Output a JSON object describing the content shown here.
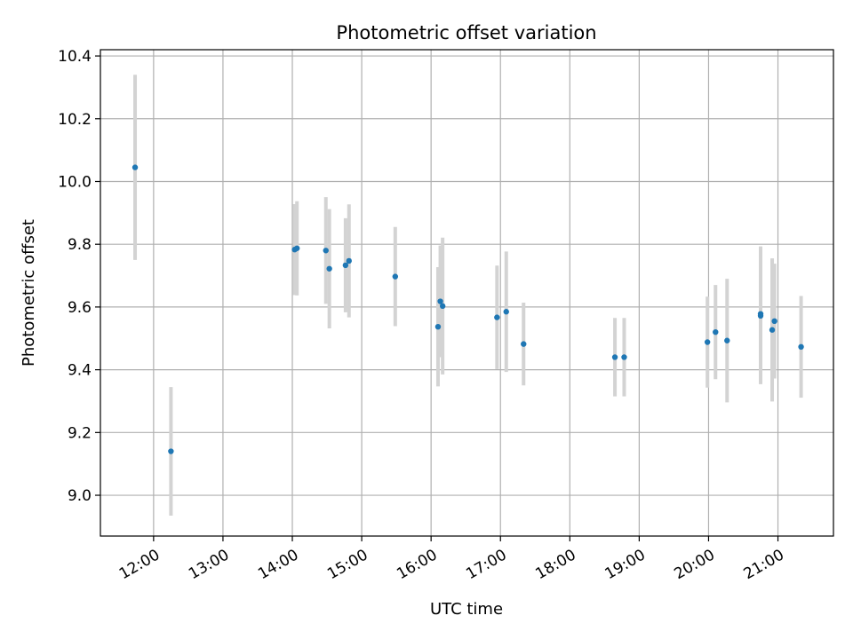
{
  "chart_data": {
    "type": "scatter",
    "title": "Photometric offset variation",
    "xlabel": "UTC time",
    "ylabel": "Photometric offset",
    "grid": true,
    "colors": {
      "point": "#1f77b4",
      "errorbar": "#d3d3d3",
      "grid": "#b0b0b0"
    },
    "xlim": [
      "11:14",
      "21:48"
    ],
    "ylim": [
      8.87,
      10.42
    ],
    "x_ticks": [
      "12:00",
      "13:00",
      "14:00",
      "15:00",
      "16:00",
      "17:00",
      "18:00",
      "19:00",
      "20:00",
      "21:00"
    ],
    "y_ticks": [
      "9.0",
      "9.2",
      "9.4",
      "9.6",
      "9.8",
      "10.0",
      "10.2",
      "10.4"
    ],
    "points": [
      {
        "x": "11:44",
        "y": 10.045,
        "yerr": 0.295
      },
      {
        "x": "12:15",
        "y": 9.14,
        "yerr": 0.205
      },
      {
        "x": "14:02",
        "y": 9.783,
        "yerr": 0.145
      },
      {
        "x": "14:04",
        "y": 9.787,
        "yerr": 0.15
      },
      {
        "x": "14:29",
        "y": 9.78,
        "yerr": 0.17
      },
      {
        "x": "14:32",
        "y": 9.722,
        "yerr": 0.19
      },
      {
        "x": "14:46",
        "y": 9.733,
        "yerr": 0.15
      },
      {
        "x": "14:49",
        "y": 9.747,
        "yerr": 0.18
      },
      {
        "x": "15:29",
        "y": 9.697,
        "yerr": 0.158
      },
      {
        "x": "16:06",
        "y": 9.537,
        "yerr": 0.19
      },
      {
        "x": "16:08",
        "y": 9.618,
        "yerr": 0.178
      },
      {
        "x": "16:10",
        "y": 9.603,
        "yerr": 0.218
      },
      {
        "x": "16:57",
        "y": 9.567,
        "yerr": 0.165
      },
      {
        "x": "17:05",
        "y": 9.585,
        "yerr": 0.192
      },
      {
        "x": "17:20",
        "y": 9.482,
        "yerr": 0.132
      },
      {
        "x": "18:39",
        "y": 9.44,
        "yerr": 0.125
      },
      {
        "x": "18:47",
        "y": 9.44,
        "yerr": 0.125
      },
      {
        "x": "19:59",
        "y": 9.488,
        "yerr": 0.145
      },
      {
        "x": "20:06",
        "y": 9.52,
        "yerr": 0.15
      },
      {
        "x": "20:16",
        "y": 9.493,
        "yerr": 0.197
      },
      {
        "x": "20:45",
        "y": 9.572,
        "yerr": 0.218
      },
      {
        "x": "20:45",
        "y": 9.578,
        "yerr": 0.215
      },
      {
        "x": "20:55",
        "y": 9.527,
        "yerr": 0.228
      },
      {
        "x": "20:57",
        "y": 9.555,
        "yerr": 0.183
      },
      {
        "x": "21:20",
        "y": 9.473,
        "yerr": 0.162
      }
    ]
  }
}
